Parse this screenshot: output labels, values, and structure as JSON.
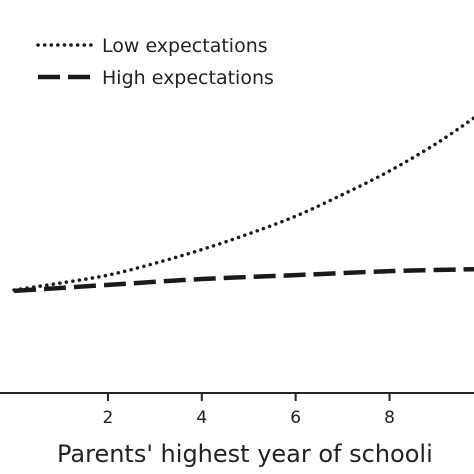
{
  "chart_data": {
    "type": "line",
    "xlabel": "Parents' highest year of schooli",
    "xlim": [
      -0.3,
      9.8
    ],
    "ylim": [
      0,
      1
    ],
    "x_ticks": [
      2,
      4,
      6,
      8
    ],
    "x_tick_labels": [
      "2",
      "4",
      "6",
      "8"
    ],
    "legend_position": "top-left",
    "grid": false,
    "series": [
      {
        "name": "Low expectations",
        "style": "dotted",
        "x": [
          0,
          1,
          2,
          3,
          4,
          5,
          6,
          7,
          8,
          9,
          9.8
        ],
        "y": [
          0.262,
          0.28,
          0.3,
          0.33,
          0.365,
          0.405,
          0.45,
          0.505,
          0.565,
          0.635,
          0.7
        ]
      },
      {
        "name": "High expectations",
        "style": "dashed",
        "x": [
          0,
          2,
          4,
          6,
          8,
          9.8
        ],
        "y": [
          0.26,
          0.275,
          0.29,
          0.3,
          0.31,
          0.315
        ]
      }
    ],
    "colors": {
      "line": "#1a1a1a",
      "text": "#222222",
      "axis": "#222222"
    }
  }
}
